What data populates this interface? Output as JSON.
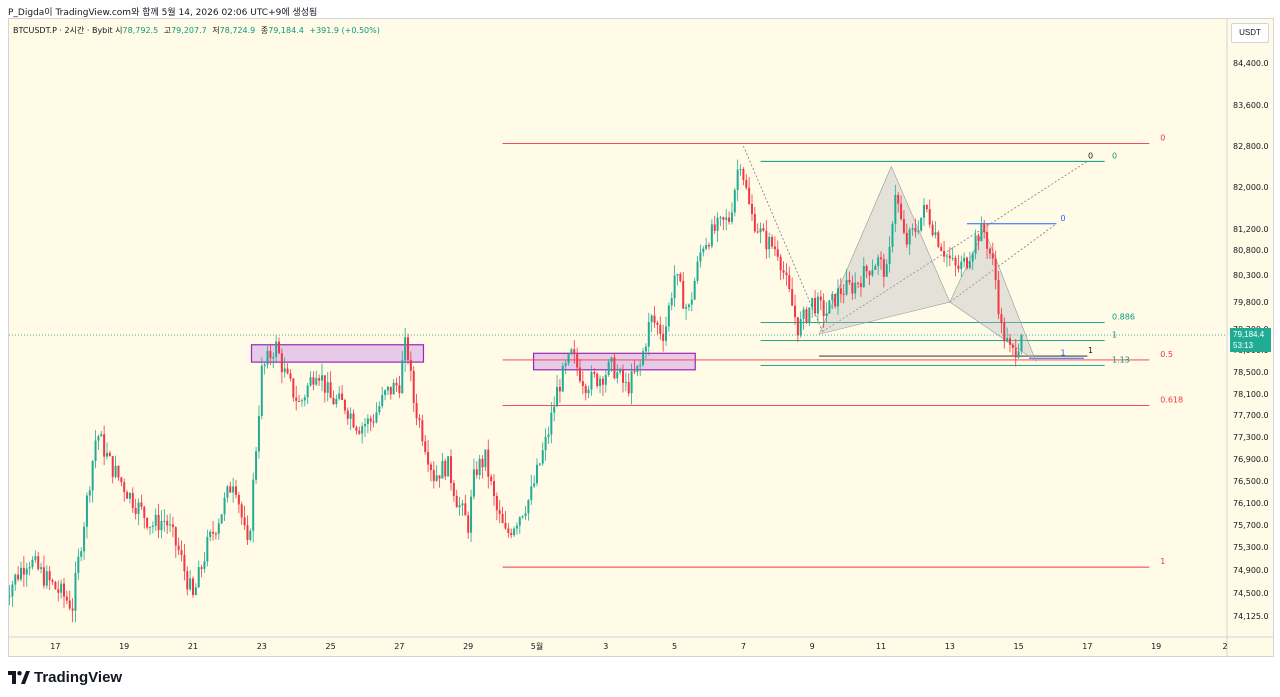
{
  "header": {
    "caption": "P_Digda이 TradingView.com와 함께 5월 14, 2026 02:06 UTC+9에 생성됨"
  },
  "legend": {
    "symbol": "BTCUSDT.P · 2시간 · Bybit",
    "open_label": "시",
    "open": "78,792.5",
    "high_label": "고",
    "high": "79,207.7",
    "low_label": "저",
    "low": "78,724.9",
    "close_label": "종",
    "close": "79,184.4",
    "change": "+391.9 (+0.50%)"
  },
  "currency": "USDT",
  "last_price": {
    "price": "79,184.4",
    "countdown": "53:13"
  },
  "brand": "TradingView",
  "colors": {
    "up": "#22ab94",
    "down": "#f23645",
    "fib_red": "#f23645",
    "fib_teal": "#089981",
    "fib_blue": "#2962ff",
    "zone": "#e1bee7",
    "zone_border": "#9c27b0",
    "pattern_fill": "#b2b5be"
  },
  "chart_data": {
    "type": "candlestick",
    "interval": "2h",
    "yticks": [
      84400,
      83600,
      82800,
      82000,
      81200,
      80800,
      80300,
      79800,
      79300,
      78900,
      78500,
      78100,
      77700,
      77300,
      76900,
      76500,
      76100,
      75700,
      75300,
      74900,
      74500,
      74125
    ],
    "ytick_labels": [
      "84,400.0",
      "83,600.0",
      "82,800.0",
      "82,000.0",
      "81,200.0",
      "80,800.0",
      "80,300.0",
      "79,800.0",
      "79,300.0",
      "78,900.0",
      "78,500.0",
      "78,100.0",
      "77,700.0",
      "77,300.0",
      "76,900.0",
      "76,500.0",
      "76,100.0",
      "75,700.0",
      "75,300.0",
      "74,900.0",
      "74,500.0",
      "74,125.0"
    ],
    "xtick_labels": [
      "17",
      "19",
      "21",
      "23",
      "25",
      "27",
      "29",
      "5월",
      "3",
      "5",
      "7",
      "9",
      "11",
      "13",
      "15",
      "17",
      "19",
      "2"
    ],
    "xtick_days": [
      -14,
      -12,
      -10,
      -8,
      -6,
      -4,
      -2,
      0,
      2,
      4,
      6,
      8,
      10,
      12,
      14,
      16,
      18,
      20
    ],
    "close_anchors": [
      [
        -15.5,
        74450
      ],
      [
        -14.8,
        75100
      ],
      [
        -14.2,
        74700
      ],
      [
        -13.5,
        74300
      ],
      [
        -12.8,
        77400
      ],
      [
        -12.4,
        76800
      ],
      [
        -11.8,
        76200
      ],
      [
        -11.2,
        75700
      ],
      [
        -10.8,
        75800
      ],
      [
        -10.4,
        75200
      ],
      [
        -10.0,
        74400
      ],
      [
        -9.6,
        75300
      ],
      [
        -9.2,
        75900
      ],
      [
        -8.8,
        76600
      ],
      [
        -8.4,
        75200
      ],
      [
        -8.0,
        78500
      ],
      [
        -7.6,
        79000
      ],
      [
        -7.3,
        78400
      ],
      [
        -6.9,
        77900
      ],
      [
        -6.4,
        78600
      ],
      [
        -6.0,
        78000
      ],
      [
        -5.6,
        77900
      ],
      [
        -5.2,
        77500
      ],
      [
        -4.8,
        77600
      ],
      [
        -4.4,
        78100
      ],
      [
        -4.0,
        78300
      ],
      [
        -3.8,
        79100
      ],
      [
        -3.6,
        78000
      ],
      [
        -3.3,
        77300
      ],
      [
        -3.0,
        76600
      ],
      [
        -2.6,
        76800
      ],
      [
        -2.3,
        76100
      ],
      [
        -2.0,
        75700
      ],
      [
        -1.8,
        76700
      ],
      [
        -1.5,
        76900
      ],
      [
        -1.2,
        76000
      ],
      [
        -0.9,
        75500
      ],
      [
        -0.5,
        75900
      ],
      [
        -0.2,
        76200
      ],
      [
        0.3,
        77300
      ],
      [
        0.6,
        78200
      ],
      [
        1.0,
        78800
      ],
      [
        1.4,
        78300
      ],
      [
        1.8,
        78400
      ],
      [
        2.2,
        78600
      ],
      [
        2.6,
        78200
      ],
      [
        3.0,
        78600
      ],
      [
        3.3,
        79500
      ],
      [
        3.7,
        79200
      ],
      [
        4.0,
        80300
      ],
      [
        4.4,
        79600
      ],
      [
        4.8,
        80900
      ],
      [
        5.2,
        81200
      ],
      [
        5.6,
        81400
      ],
      [
        5.9,
        82600
      ],
      [
        6.2,
        81500
      ],
      [
        6.6,
        81000
      ],
      [
        7.0,
        80800
      ],
      [
        7.3,
        80000
      ],
      [
        7.6,
        79300
      ],
      [
        8.0,
        79800
      ],
      [
        8.4,
        79600
      ],
      [
        8.8,
        80000
      ],
      [
        9.2,
        80100
      ],
      [
        9.6,
        80400
      ],
      [
        9.9,
        80600
      ],
      [
        10.2,
        80300
      ],
      [
        10.4,
        82000
      ],
      [
        10.7,
        80900
      ],
      [
        11.0,
        81200
      ],
      [
        11.3,
        81600
      ],
      [
        11.6,
        81100
      ],
      [
        11.9,
        80700
      ],
      [
        12.2,
        80400
      ],
      [
        12.5,
        80600
      ],
      [
        12.8,
        81100
      ],
      [
        13.0,
        81150
      ],
      [
        13.3,
        80400
      ],
      [
        13.5,
        79300
      ],
      [
        13.8,
        78800
      ],
      [
        14.1,
        79184
      ]
    ],
    "levels": [
      {
        "price": 82850,
        "label": "0",
        "color": "red"
      },
      {
        "price": 78720,
        "label": "0.5",
        "color": "red"
      },
      {
        "price": 77880,
        "label": "0.618",
        "color": "red"
      },
      {
        "price": 74950,
        "label": "1",
        "color": "red"
      },
      {
        "price": 82500,
        "label": "0",
        "color": "teal"
      },
      {
        "price": 79420,
        "label": "0.886",
        "color": "teal"
      },
      {
        "price": 79080,
        "label": "1",
        "color": "teal"
      },
      {
        "price": 78620,
        "label": "1.13",
        "color": "teal"
      },
      {
        "price": 81300,
        "label": "0",
        "color": "blue"
      },
      {
        "price": 78750,
        "label": "1",
        "color": "blue"
      },
      {
        "price": 82500,
        "label": "0",
        "color": "black"
      },
      {
        "price": 78790,
        "label": "1",
        "color": "black"
      }
    ],
    "zones": [
      {
        "from": -8.3,
        "to": -3.3,
        "top": 79000,
        "bottom": 78680
      },
      {
        "from": -0.1,
        "to": 4.6,
        "top": 78840,
        "bottom": 78540
      }
    ],
    "pattern_points": [
      [
        8.2,
        79200
      ],
      [
        10.3,
        82400
      ],
      [
        12.0,
        79800
      ],
      [
        13.0,
        81200
      ],
      [
        14.5,
        78700
      ]
    ],
    "last": 79184.4
  }
}
